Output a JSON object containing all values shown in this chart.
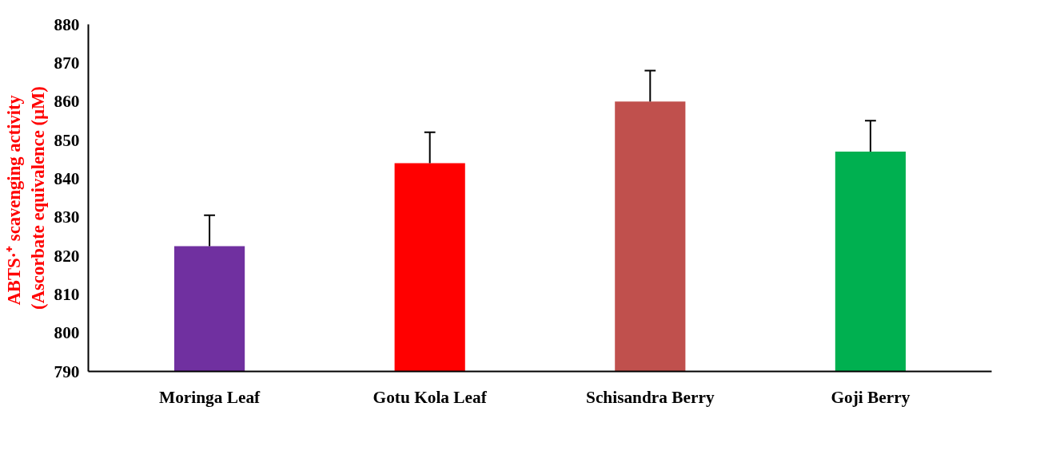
{
  "chart_data": {
    "type": "bar",
    "ylabel": "ABTS·⁺  scavenging activity\n(Ascorbate equivalence (µM)",
    "categories": [
      "Moringa Leaf",
      "Gotu Kola Leaf",
      "Schisandra Berry",
      "Goji Berry"
    ],
    "values": [
      822.5,
      844,
      860,
      847
    ],
    "colors": [
      "#7030a0",
      "#ff0000",
      "#c0504d",
      "#00b050"
    ],
    "errors": [
      [
        822.5,
        830.5
      ],
      [
        844,
        852
      ],
      [
        860,
        868
      ],
      [
        847,
        855
      ]
    ],
    "ylim": [
      790,
      880
    ],
    "yticks": [
      790,
      800,
      810,
      820,
      830,
      840,
      850,
      860,
      870,
      880
    ],
    "grid": false
  }
}
